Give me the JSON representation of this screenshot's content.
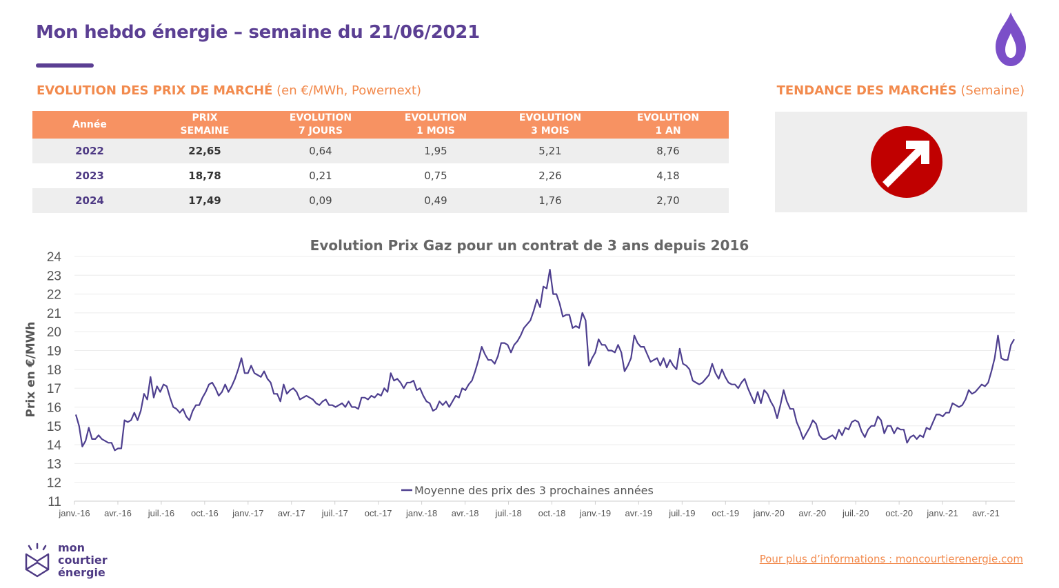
{
  "header": {
    "title": "Mon hebdo énergie – semaine du 21/06/2021"
  },
  "sections": {
    "prices_title": "EVOLUTION DES PRIX DE MARCHÉ",
    "prices_unit": " (en €/MWh, Powernext)",
    "trend_title": "TENDANCE DES MARCHÉS",
    "trend_unit": " (Semaine)"
  },
  "table": {
    "headers": [
      {
        "l1": "Année",
        "l2": ""
      },
      {
        "l1": "PRIX",
        "l2": "SEMAINE"
      },
      {
        "l1": "EVOLUTION",
        "l2": "7 JOURS"
      },
      {
        "l1": "EVOLUTION",
        "l2": "1 MOIS"
      },
      {
        "l1": "EVOLUTION",
        "l2": "3 MOIS"
      },
      {
        "l1": "EVOLUTION",
        "l2": "1 AN"
      }
    ],
    "rows": [
      {
        "year": "2022",
        "price": "22,65",
        "e7": "0,64",
        "e1m": "1,95",
        "e3m": "5,21",
        "e1y": "8,76"
      },
      {
        "year": "2023",
        "price": "18,78",
        "e7": "0,21",
        "e1m": "0,75",
        "e3m": "2,26",
        "e1y": "4,18"
      },
      {
        "year": "2024",
        "price": "17,49",
        "e7": "0,09",
        "e1m": "0,49",
        "e3m": "1,76",
        "e1y": "2,70"
      }
    ]
  },
  "trend": {
    "icon": "arrow-up-right-icon",
    "color": "#c00000"
  },
  "chart_data": {
    "type": "line",
    "title": "Evolution Prix Gaz pour un contrat de 3 ans depuis 2016",
    "xlabel": "",
    "ylabel": "Prix en €/MWh",
    "ylim": [
      11,
      24
    ],
    "yticks": [
      11,
      12,
      13,
      14,
      15,
      16,
      17,
      18,
      19,
      20,
      21,
      22,
      23,
      24
    ],
    "xticks": [
      "janv.-16",
      "avr.-16",
      "juil.-16",
      "oct.-16",
      "janv.-17",
      "avr.-17",
      "juil.-17",
      "oct.-17",
      "janv.-18",
      "avr.-18",
      "juil.-18",
      "oct.-18",
      "janv.-19",
      "avr.-19",
      "juil.-19",
      "oct.-19",
      "janv.-20",
      "avr.-20",
      "juil.-20",
      "oct.-20",
      "janv.-21",
      "avr.-21"
    ],
    "xrange": [
      "janv.-16",
      "juin-21"
    ],
    "grid": "horizontal",
    "legend": "bottom-center",
    "series": [
      {
        "name": "Moyenne des prix des 3 prochaines années",
        "color": "#4e3f8f",
        "values": [
          15.6,
          15.0,
          13.9,
          14.2,
          14.9,
          14.3,
          14.3,
          14.5,
          14.3,
          14.2,
          14.1,
          14.1,
          13.7,
          13.8,
          13.8,
          15.3,
          15.2,
          15.3,
          15.7,
          15.3,
          15.8,
          16.7,
          16.4,
          17.6,
          16.5,
          17.1,
          16.8,
          17.2,
          17.1,
          16.5,
          16.0,
          15.9,
          15.7,
          15.9,
          15.5,
          15.3,
          15.8,
          16.1,
          16.1,
          16.5,
          16.8,
          17.2,
          17.3,
          17.0,
          16.6,
          16.8,
          17.2,
          16.8,
          17.1,
          17.5,
          18.0,
          18.6,
          17.8,
          17.8,
          18.2,
          17.8,
          17.7,
          17.6,
          17.9,
          17.5,
          17.3,
          16.7,
          16.7,
          16.3,
          17.2,
          16.7,
          16.9,
          17.0,
          16.8,
          16.4,
          16.5,
          16.6,
          16.5,
          16.4,
          16.2,
          16.1,
          16.3,
          16.4,
          16.1,
          16.1,
          16.0,
          16.1,
          16.2,
          16.0,
          16.3,
          16.0,
          16.0,
          15.9,
          16.5,
          16.5,
          16.4,
          16.6,
          16.5,
          16.7,
          16.6,
          17.0,
          16.8,
          17.8,
          17.4,
          17.5,
          17.3,
          17.0,
          17.3,
          17.3,
          17.4,
          16.9,
          17.0,
          16.6,
          16.3,
          16.2,
          15.8,
          15.9,
          16.3,
          16.1,
          16.3,
          16.0,
          16.3,
          16.6,
          16.5,
          17.0,
          16.9,
          17.2,
          17.4,
          17.9,
          18.5,
          19.2,
          18.8,
          18.5,
          18.5,
          18.3,
          18.7,
          19.4,
          19.4,
          19.3,
          18.9,
          19.3,
          19.5,
          19.8,
          20.2,
          20.4,
          20.6,
          21.1,
          21.7,
          21.3,
          22.4,
          22.3,
          23.3,
          22.0,
          22.0,
          21.5,
          20.8,
          20.9,
          20.9,
          20.2,
          20.3,
          20.2,
          21.0,
          20.6,
          18.2,
          18.6,
          18.9,
          19.6,
          19.3,
          19.3,
          19.0,
          19.0,
          18.9,
          19.3,
          18.9,
          17.9,
          18.2,
          18.6,
          19.8,
          19.4,
          19.2,
          19.2,
          18.8,
          18.4,
          18.5,
          18.6,
          18.2,
          18.6,
          18.1,
          18.5,
          18.2,
          18.0,
          19.1,
          18.3,
          18.2,
          18.0,
          17.4,
          17.3,
          17.2,
          17.3,
          17.5,
          17.7,
          18.3,
          17.8,
          17.5,
          18.0,
          17.6,
          17.3,
          17.2,
          17.2,
          17.0,
          17.3,
          17.5,
          17.0,
          16.6,
          16.2,
          16.8,
          16.2,
          16.9,
          16.7,
          16.3,
          16.0,
          15.4,
          16.1,
          16.9,
          16.3,
          15.9,
          15.9,
          15.2,
          14.8,
          14.3,
          14.6,
          14.9,
          15.3,
          15.1,
          14.5,
          14.3,
          14.3,
          14.4,
          14.5,
          14.3,
          14.8,
          14.5,
          14.9,
          14.8,
          15.2,
          15.3,
          15.2,
          14.7,
          14.4,
          14.8,
          15.0,
          15.0,
          15.5,
          15.3,
          14.6,
          15.0,
          15.0,
          14.6,
          14.9,
          14.8,
          14.8,
          14.1,
          14.4,
          14.5,
          14.3,
          14.5,
          14.4,
          14.9,
          14.8,
          15.2,
          15.6,
          15.6,
          15.5,
          15.7,
          15.7,
          16.2,
          16.1,
          16.0,
          16.1,
          16.4,
          16.9,
          16.7,
          16.8,
          17.0,
          17.2,
          17.1,
          17.3,
          17.9,
          18.6,
          19.8,
          18.6,
          18.5,
          18.5,
          19.3,
          19.6
        ]
      }
    ]
  },
  "footer": {
    "logo_line1": "mon",
    "logo_line2": "courtier",
    "logo_line3": "énergie",
    "link": "Pour plus d’informations : moncourtierenergie.com"
  }
}
